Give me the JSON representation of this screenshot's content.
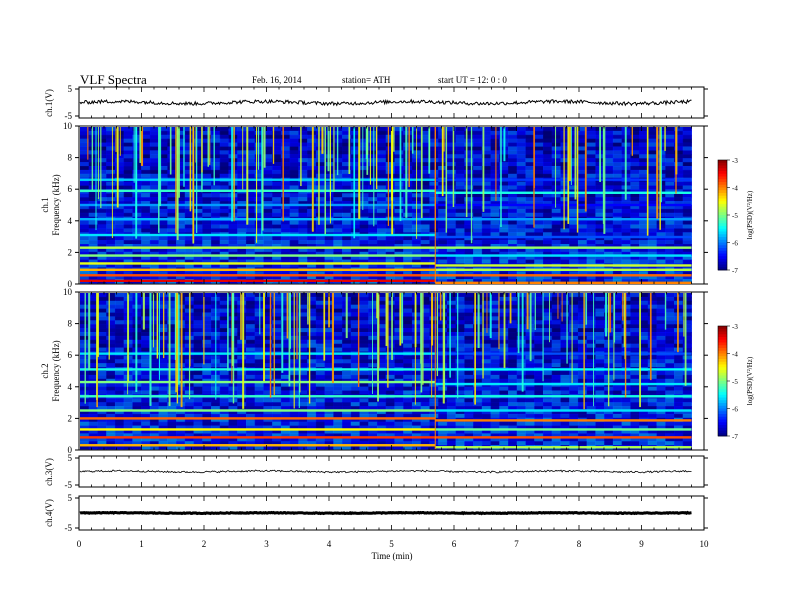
{
  "header": {
    "title": "VLF  Spectra",
    "date": "Feb. 16,  2014",
    "station": "station= ATH",
    "start": "start  UT  =    12: 0  : 0"
  },
  "colors": {
    "background": "#ffffff",
    "axis": "#000000",
    "spectrogram_floor": "#00001a"
  },
  "chart_data": [
    {
      "type": "line",
      "name": "ch1-waveform",
      "ylabel": "ch.1(V)",
      "yticks": [
        "5",
        "-5"
      ],
      "ylim": [
        -5,
        5
      ],
      "mean_level": 0,
      "xlim": [
        0,
        9.8
      ]
    },
    {
      "type": "heatmap",
      "name": "ch1-spectrogram",
      "ylabel_channel": "ch.1",
      "ylabel": "Frequency  (kHz)",
      "yticks": [
        "0",
        "2",
        "4",
        "6",
        "8",
        "10"
      ],
      "ylim": [
        0,
        10
      ],
      "xlim": [
        0,
        9.8
      ],
      "colorbar": {
        "label": "log(PSD)(V²/Hz)",
        "ticks": [
          "-3",
          "-4",
          "-5",
          "-6",
          "-7"
        ],
        "range": [
          -7,
          -3
        ]
      },
      "bands": [
        {
          "freq_khz": 0.2,
          "logpsd": -3.4
        },
        {
          "freq_khz": 0.55,
          "logpsd": -3.8
        },
        {
          "freq_khz": 0.9,
          "logpsd": -4.2
        },
        {
          "freq_khz": 1.3,
          "logpsd": -4.6
        },
        {
          "freq_khz": 1.8,
          "logpsd": -5.0
        },
        {
          "freq_khz": 2.3,
          "logpsd": -4.8
        },
        {
          "freq_khz": 3.1,
          "logpsd": -5.6
        },
        {
          "freq_khz": 4.1,
          "logpsd": -5.8
        },
        {
          "freq_khz": 5.0,
          "logpsd": -5.9
        },
        {
          "freq_khz": 5.9,
          "logpsd": -5.3
        },
        {
          "freq_khz": 6.6,
          "logpsd": -5.7
        }
      ],
      "transition_time_min": 5.7
    },
    {
      "type": "heatmap",
      "name": "ch2-spectrogram",
      "ylabel_channel": "ch.2",
      "ylabel": "Frequency  (kHz)",
      "yticks": [
        "0",
        "2",
        "4",
        "6",
        "8",
        "10"
      ],
      "ylim": [
        0,
        10
      ],
      "xlim": [
        0,
        9.8
      ],
      "colorbar": {
        "label": "log(PSD)(V²/Hz)",
        "ticks": [
          "-3",
          "-4",
          "-5",
          "-6",
          "-7"
        ],
        "range": [
          -7,
          -3
        ]
      },
      "bands": [
        {
          "freq_khz": 0.3,
          "logpsd": -4.2
        },
        {
          "freq_khz": 0.8,
          "logpsd": -3.7
        },
        {
          "freq_khz": 1.3,
          "logpsd": -4.5
        },
        {
          "freq_khz": 2.0,
          "logpsd": -3.9
        },
        {
          "freq_khz": 2.5,
          "logpsd": -5.0
        },
        {
          "freq_khz": 3.4,
          "logpsd": -5.3
        },
        {
          "freq_khz": 4.3,
          "logpsd": -5.0
        },
        {
          "freq_khz": 5.1,
          "logpsd": -5.4
        },
        {
          "freq_khz": 6.1,
          "logpsd": -5.6
        }
      ],
      "transition_time_min": 5.7
    },
    {
      "type": "line",
      "name": "ch3-waveform",
      "ylabel": "ch.3(V)",
      "yticks": [
        "5",
        "-5"
      ],
      "ylim": [
        -5,
        5
      ],
      "mean_level": 0,
      "xlim": [
        0,
        9.8
      ]
    },
    {
      "type": "line",
      "name": "ch4-waveform",
      "ylabel": "ch.4(V)",
      "yticks": [
        "5",
        "-5"
      ],
      "ylim": [
        -5,
        5
      ],
      "mean_level": 0,
      "xlim": [
        0,
        9.8
      ]
    }
  ],
  "xaxis": {
    "label": "Time  (min)",
    "ticks": [
      "0",
      "1",
      "2",
      "3",
      "4",
      "5",
      "6",
      "7",
      "8",
      "9",
      "10"
    ],
    "range": [
      0,
      10
    ]
  }
}
